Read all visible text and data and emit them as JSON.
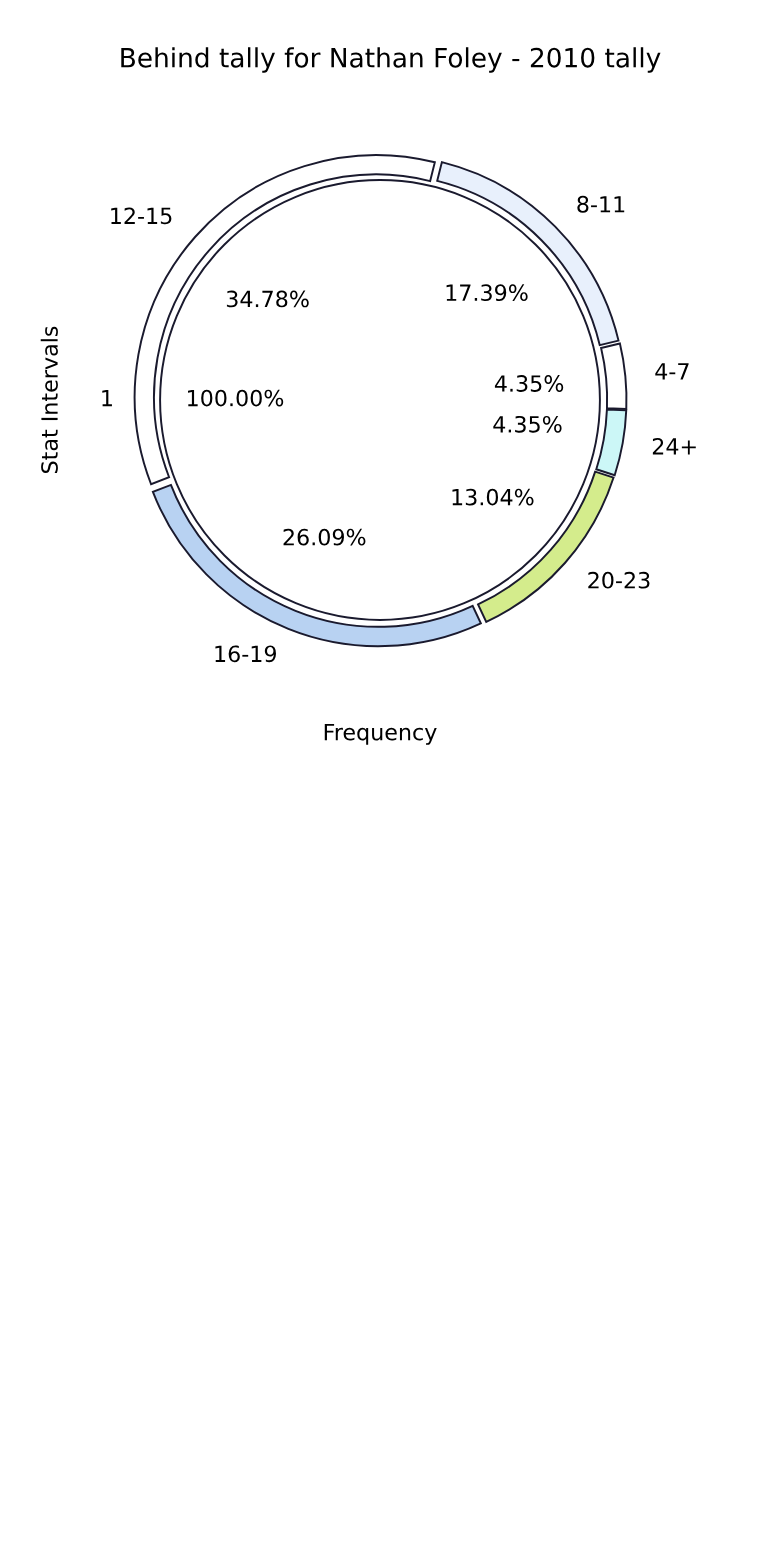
{
  "chart_data": {
    "type": "donut",
    "title": "Behind tally for Nathan Foley - 2010 tally",
    "xlabel": "Frequency",
    "ylabel": "Stat Intervals",
    "categories": [
      "8-11",
      "4-7",
      "24+",
      "20-23",
      "16-19",
      "12-15"
    ],
    "values": [
      17.39,
      4.35,
      4.35,
      13.04,
      26.09,
      34.78
    ],
    "value_labels": [
      "17.39%",
      "4.35%",
      "4.35%",
      "13.04%",
      "26.09%",
      "34.78%"
    ],
    "colors": [
      "#e8f0fc",
      "#ffffff",
      "#ccf7f7",
      "#d4ec8c",
      "#b8d2f2",
      "#ffffff"
    ],
    "annotations": [
      "1",
      "100.00%"
    ]
  }
}
